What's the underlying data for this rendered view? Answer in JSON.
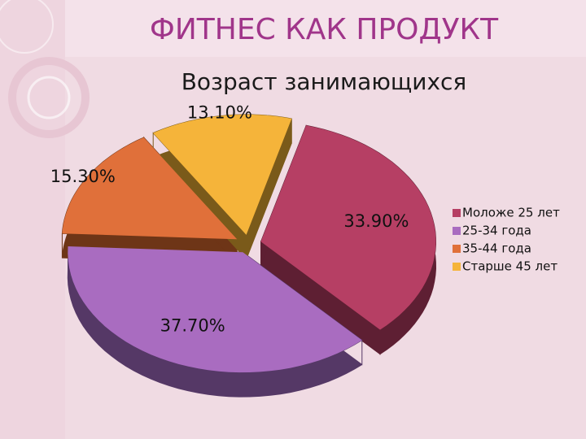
{
  "chart_data": {
    "type": "pie3d",
    "title": "ФИТНЕС КАК ПРОДУКТ",
    "subtitle": "Возраст занимающихся",
    "categories": [
      "Моложе 25 лет",
      "25-34 года",
      "35-44 года",
      "Старше 45 лет"
    ],
    "values": [
      33.9,
      37.7,
      15.3,
      13.1
    ],
    "value_labels": [
      "33.90%",
      "37.70%",
      "15.30%",
      "13.10%"
    ],
    "colors": [
      "#b63f64",
      "#a96cc0",
      "#e0703a",
      "#f5b43a"
    ],
    "side_colors": [
      "#5e1f33",
      "#553866",
      "#6e3517",
      "#7a5a1a"
    ],
    "legend": "right"
  }
}
